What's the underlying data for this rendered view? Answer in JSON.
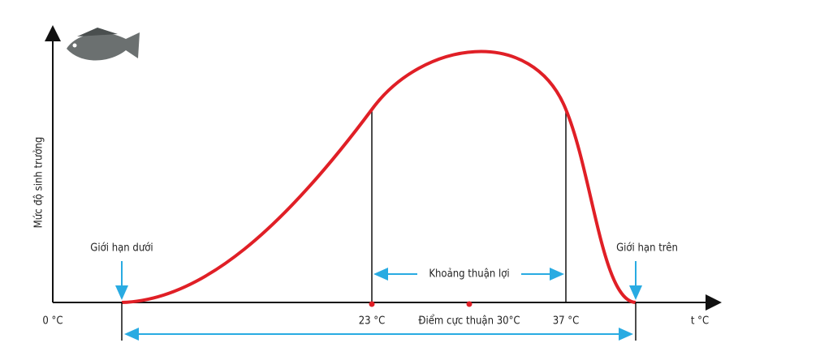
{
  "y_axis_label": "Mức độ sinh trưởng",
  "origin_label": "0 °C",
  "x_axis_label": "t °C",
  "lower_limit": "Giới hạn dưới",
  "upper_limit": "Giới hạn trên",
  "favorable_range": "Khoảng thuận lợi",
  "ticks": {
    "low": "23 °C",
    "optimum": "Điểm cực thuận 30°C",
    "high": "37 °C"
  }
}
